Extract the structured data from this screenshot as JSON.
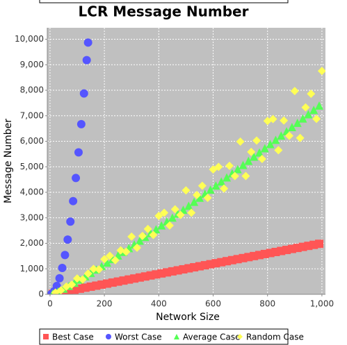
{
  "chart_data": {
    "type": "scatter",
    "title": "LCR Message Number",
    "x_label": "Network Size",
    "y_label": "Message Number",
    "xlim": [
      -10,
      1013
    ],
    "ylim": [
      0,
      10450
    ],
    "xticks": [
      0,
      200,
      400,
      600,
      800,
      {
        "value": 1000,
        "label": "1,000"
      }
    ],
    "yticks": [
      0,
      {
        "value": 1000,
        "label": "1,000"
      },
      {
        "value": 2000,
        "label": "2,000"
      },
      {
        "value": 3000,
        "label": "3,000"
      },
      {
        "value": 4000,
        "label": "4,000"
      },
      {
        "value": 5000,
        "label": "5,000"
      },
      {
        "value": 6000,
        "label": "6,000"
      },
      {
        "value": 7000,
        "label": "7,000"
      },
      {
        "value": 8000,
        "label": "8,000"
      },
      {
        "value": 9000,
        "label": "9,000"
      },
      {
        "value": 10000,
        "label": "10,000"
      }
    ],
    "grid": true,
    "legend": "bottom",
    "series": [
      {
        "name": "Best Case",
        "color": "#ff5555",
        "marker": "square",
        "x": [
          10,
          30,
          50,
          70,
          90,
          110,
          130,
          150,
          170,
          190,
          210,
          230,
          250,
          270,
          290,
          310,
          330,
          350,
          370,
          390,
          410,
          430,
          450,
          470,
          490,
          510,
          530,
          550,
          570,
          590,
          610,
          630,
          650,
          670,
          690,
          710,
          730,
          750,
          770,
          790,
          810,
          830,
          850,
          870,
          890,
          910,
          930,
          950,
          970,
          990
        ],
        "values": [
          20,
          60,
          100,
          140,
          180,
          220,
          260,
          300,
          340,
          380,
          420,
          460,
          500,
          540,
          580,
          620,
          660,
          700,
          740,
          780,
          820,
          860,
          900,
          940,
          980,
          1020,
          1060,
          1100,
          1140,
          1180,
          1220,
          1260,
          1300,
          1340,
          1380,
          1420,
          1460,
          1500,
          1540,
          1580,
          1620,
          1660,
          1700,
          1740,
          1780,
          1820,
          1860,
          1900,
          1940,
          1980
        ]
      },
      {
        "name": "Worst Case",
        "color": "#5555ff",
        "marker": "circle",
        "x": [
          5,
          15,
          25,
          35,
          45,
          55,
          65,
          75,
          85,
          95,
          105,
          115,
          125,
          135,
          140
        ],
        "values": [
          15,
          120,
          325,
          630,
          1035,
          1540,
          2145,
          2850,
          3655,
          4560,
          5565,
          6670,
          7875,
          9180,
          9870
        ]
      },
      {
        "name": "Average Case",
        "color": "#55ff55",
        "marker": "triangle",
        "x": [
          10,
          30,
          50,
          70,
          90,
          110,
          130,
          150,
          170,
          190,
          210,
          230,
          250,
          270,
          290,
          310,
          330,
          350,
          370,
          390,
          410,
          430,
          450,
          470,
          490,
          510,
          530,
          550,
          570,
          590,
          610,
          630,
          650,
          670,
          690,
          710,
          730,
          750,
          770,
          790,
          810,
          830,
          850,
          870,
          890,
          910,
          930,
          950,
          970,
          990
        ],
        "values": [
          29,
          120,
          225,
          338,
          457,
          581,
          708,
          839,
          972,
          1107,
          1245,
          1384,
          1525,
          1668,
          1812,
          1958,
          2105,
          2253,
          2402,
          2552,
          2704,
          2856,
          3009,
          3164,
          3318,
          3474,
          3631,
          3788,
          3947,
          4105,
          4265,
          4425,
          4586,
          4747,
          4909,
          5072,
          5235,
          5399,
          5562,
          5728,
          5893,
          6058,
          6225,
          6391,
          6558,
          6726,
          6894,
          7062,
          7231,
          7401
        ]
      },
      {
        "name": "Random Case",
        "color": "#ffff55",
        "marker": "diamond",
        "x": [
          20,
          40,
          60,
          80,
          100,
          120,
          140,
          160,
          180,
          200,
          220,
          240,
          260,
          280,
          300,
          320,
          340,
          360,
          380,
          400,
          420,
          440,
          460,
          480,
          500,
          520,
          540,
          560,
          580,
          600,
          620,
          640,
          660,
          680,
          700,
          720,
          740,
          760,
          780,
          800,
          820,
          840,
          860,
          880,
          900,
          920,
          940,
          960,
          980,
          1000
        ],
        "values": [
          69,
          157,
          303,
          381,
          623,
          580,
          812,
          996,
          977,
          1376,
          1511,
          1338,
          1724,
          1670,
          2262,
          1828,
          2288,
          2560,
          2328,
          3075,
          3197,
          2697,
          3333,
          3111,
          4075,
          3197,
          3894,
          4254,
          3784,
          4896,
          4997,
          4145,
          5039,
          4635,
          5988,
          4638,
          5583,
          6028,
          5306,
          6798,
          6871,
          5650,
          6813,
          6215,
          7970,
          6129,
          7327,
          7861,
          6877,
          8757
        ]
      }
    ]
  }
}
